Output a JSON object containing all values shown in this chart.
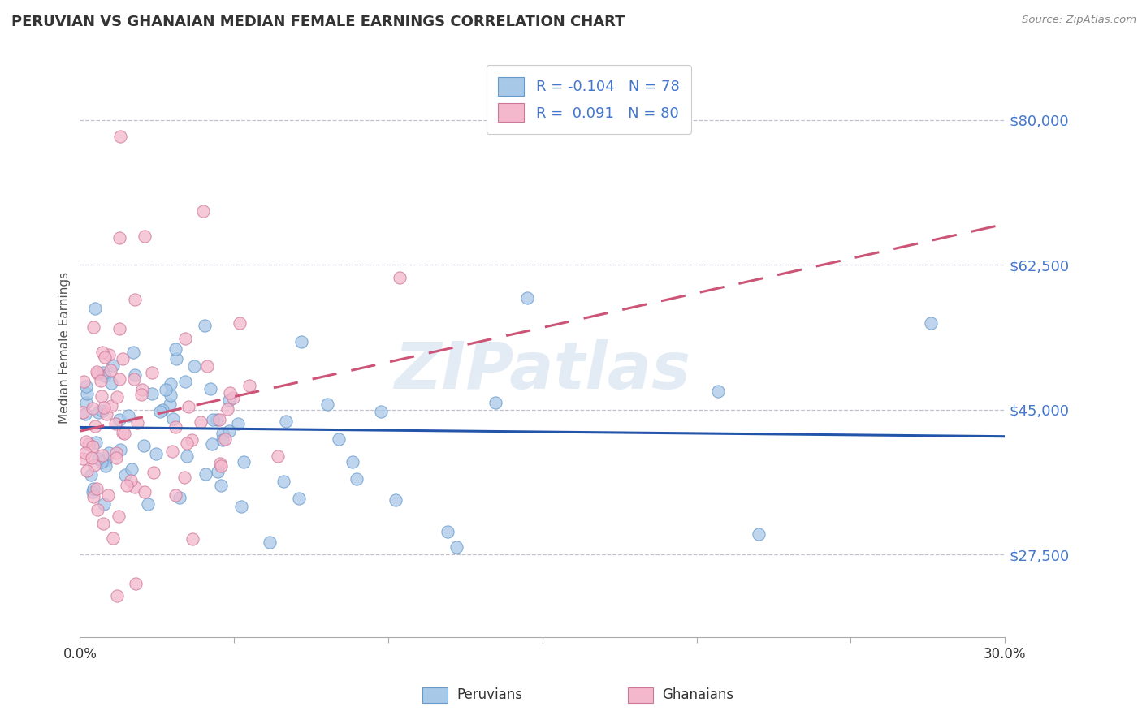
{
  "title": "PERUVIAN VS GHANAIAN MEDIAN FEMALE EARNINGS CORRELATION CHART",
  "source_text": "Source: ZipAtlas.com",
  "ylabel": "Median Female Earnings",
  "xlim": [
    0.0,
    0.3
  ],
  "ylim": [
    17500,
    87500
  ],
  "yticks": [
    27500,
    45000,
    62500,
    80000
  ],
  "ytick_labels": [
    "$27,500",
    "$45,000",
    "$62,500",
    "$80,000"
  ],
  "peruvian_color": "#a8c8e8",
  "peruvian_edge_color": "#6699cc",
  "ghanaian_color": "#f4b8cc",
  "ghanaian_edge_color": "#cc7799",
  "peruvian_line_color": "#2255aa",
  "ghanaian_line_color": "#cc5577",
  "legend_R_peruvian": "-0.104",
  "legend_N_peruvian": "78",
  "legend_R_ghanaian": "0.091",
  "legend_N_ghanaian": "80",
  "watermark": "ZIPatlas",
  "background_color": "#ffffff",
  "grid_color": "#bbbbcc",
  "title_color": "#333333",
  "tick_color": "#4477cc",
  "legend_text_color": "#4477cc"
}
